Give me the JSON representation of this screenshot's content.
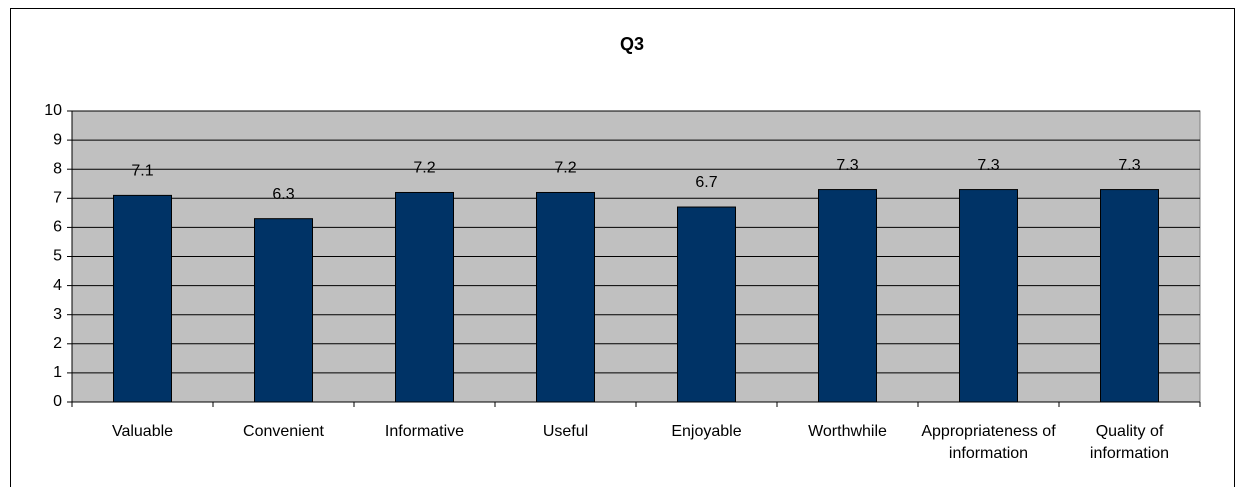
{
  "chart_data": {
    "type": "bar",
    "title": "Q3",
    "categories": [
      "Valuable",
      "Convenient",
      "Informative",
      "Useful",
      "Enjoyable",
      "Worthwhile",
      "Appropriateness of information",
      "Quality of information"
    ],
    "values": [
      7.1,
      6.3,
      7.2,
      7.2,
      6.7,
      7.3,
      7.3,
      7.3
    ],
    "color": "#003366",
    "ylim": [
      0,
      10
    ],
    "yticks": [
      0,
      1,
      2,
      3,
      4,
      5,
      6,
      7,
      8,
      9,
      10
    ],
    "grid": true
  }
}
